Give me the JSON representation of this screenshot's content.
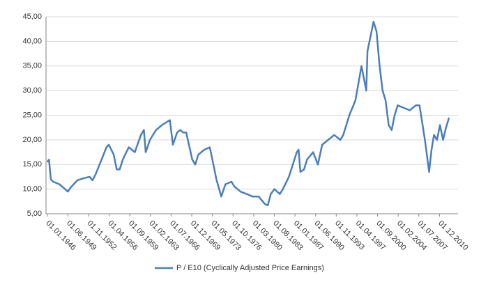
{
  "chart_data": {
    "type": "line",
    "x": [
      1946.0,
      1946.3,
      1946.6,
      1947,
      1948,
      1948.5,
      1949.4,
      1950,
      1951,
      1952,
      1953,
      1953.5,
      1954,
      1955,
      1955.8,
      1956.2,
      1956.6,
      1957,
      1957.5,
      1958,
      1958.5,
      1959.5,
      1960,
      1960.5,
      1961.5,
      1962,
      1962.3,
      1963,
      1964,
      1965,
      1966,
      1966.3,
      1966.8,
      1967.5,
      1968,
      1968.5,
      1969,
      1970,
      1970.5,
      1971,
      1972,
      1972.9,
      1973.5,
      1974,
      1974.8,
      1975.5,
      1976.5,
      1977,
      1978,
      1979,
      1980,
      1981,
      1982,
      1982.5,
      1983,
      1983.6,
      1984.5,
      1985,
      1986,
      1987.3,
      1987.6,
      1987.9,
      1988.5,
      1989,
      1990,
      1990.8,
      1991.5,
      1992.5,
      1993.5,
      1994.5,
      1995,
      1996,
      1997,
      1998,
      1998.8,
      1999,
      1999.5,
      2000,
      2000.5,
      2001,
      2001.5,
      2002,
      2002.5,
      2003,
      2003.5,
      2004,
      2005,
      2006,
      2007,
      2007.6,
      2008,
      2008.5,
      2009.2,
      2009.6,
      2010,
      2010.5,
      2011,
      2011.5,
      2012,
      2012.5
    ],
    "series": [
      {
        "name": "P / E10 (Cyclically Adjusted Price Earnings)",
        "color": "#4a7ebb",
        "values": [
          15.5,
          16,
          12,
          11.5,
          11,
          10.5,
          9.5,
          10.5,
          11.8,
          12.2,
          12.5,
          11.8,
          13,
          16,
          18.5,
          19,
          18,
          17,
          14,
          14,
          16,
          18.5,
          18,
          17.5,
          21,
          22,
          17.5,
          20,
          22,
          23,
          23.8,
          24,
          19,
          21.5,
          22,
          21.5,
          21.5,
          16,
          15,
          17,
          18,
          18.5,
          15,
          12,
          8.5,
          11,
          11.5,
          10.5,
          9.5,
          9,
          8.5,
          8.5,
          7,
          6.7,
          9,
          10,
          9,
          10,
          12.5,
          17.5,
          18,
          13.5,
          14,
          16,
          17.5,
          15,
          19,
          20,
          21,
          20,
          21,
          25,
          28,
          35,
          30,
          38,
          41,
          44,
          42,
          35,
          30,
          28,
          23,
          22,
          25,
          27,
          26.5,
          26,
          27,
          27,
          24,
          20,
          13.5,
          18,
          21,
          20,
          23,
          20,
          22.5,
          24.5
        ]
      }
    ],
    "xlim": [
      1945.8,
      2012.6
    ],
    "xticks": [
      {
        "value": 1946,
        "label": "01.01.1946"
      },
      {
        "value": 1949.4167,
        "label": "01.06.1949"
      },
      {
        "value": 1952.8333,
        "label": "01.11.1952"
      },
      {
        "value": 1956.25,
        "label": "01.04.1956"
      },
      {
        "value": 1959.6667,
        "label": "01.09.1959"
      },
      {
        "value": 1963.0833,
        "label": "01.02.1963"
      },
      {
        "value": 1966.5,
        "label": "01.07.1966"
      },
      {
        "value": 1969.9167,
        "label": "01.12.1969"
      },
      {
        "value": 1973.3333,
        "label": "01.05.1973"
      },
      {
        "value": 1976.75,
        "label": "01.10.1976"
      },
      {
        "value": 1980.1667,
        "label": "01.03.1980"
      },
      {
        "value": 1983.5833,
        "label": "01.08.1983"
      },
      {
        "value": 1987,
        "label": "01.01.1987"
      },
      {
        "value": 1990.4167,
        "label": "01.06.1990"
      },
      {
        "value": 1993.8333,
        "label": "01.11.1993"
      },
      {
        "value": 1997.25,
        "label": "01.04.1997"
      },
      {
        "value": 2000.6667,
        "label": "01.09.2000"
      },
      {
        "value": 2004.0833,
        "label": "01.02.2004"
      },
      {
        "value": 2007.5,
        "label": "01.07.2007"
      },
      {
        "value": 2010.9167,
        "label": "01.12.2010"
      }
    ],
    "ylim": [
      5,
      45
    ],
    "yticks": [
      {
        "value": 5,
        "label": "5,00"
      },
      {
        "value": 10,
        "label": "10,00"
      },
      {
        "value": 15,
        "label": "15,00"
      },
      {
        "value": 20,
        "label": "20,00"
      },
      {
        "value": 25,
        "label": "25,00"
      },
      {
        "value": 30,
        "label": "30,00"
      },
      {
        "value": 35,
        "label": "35,00"
      },
      {
        "value": 40,
        "label": "40,00"
      },
      {
        "value": 45,
        "label": "45,00"
      }
    ],
    "grid": true,
    "legend": "bottom"
  }
}
